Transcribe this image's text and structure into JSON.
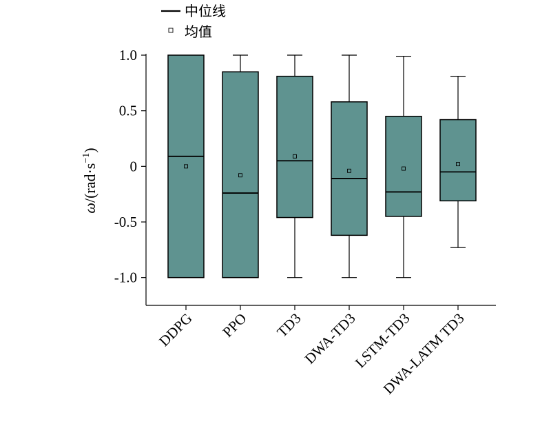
{
  "chart_data": {
    "type": "box",
    "ylabel_symbol": "ω",
    "ylabel_unit": "/(rad·s",
    "ylabel_exp": "−1",
    "ylabel_close": ")",
    "ylim": [
      -1.25,
      1.0
    ],
    "yticks": [
      1.0,
      0.5,
      0,
      -0.5,
      -1.0
    ],
    "ytick_labels": [
      "1.0",
      "0.5",
      "0",
      "-0.5",
      "-1.0"
    ],
    "categories": [
      "DDPG",
      "PPO",
      "TD3",
      "DWA-TD3",
      "LSTM-TD3",
      "DWA-LATM TD3"
    ],
    "boxes": [
      {
        "min": -1.0,
        "q1": -1.0,
        "median": 0.09,
        "q3": 1.0,
        "max": 1.0,
        "mean": 0.0
      },
      {
        "min": -1.0,
        "q1": -1.0,
        "median": -0.24,
        "q3": 0.85,
        "max": 1.0,
        "mean": -0.08
      },
      {
        "min": -1.0,
        "q1": -0.46,
        "median": 0.05,
        "q3": 0.81,
        "max": 1.0,
        "mean": 0.09
      },
      {
        "min": -1.0,
        "q1": -0.62,
        "median": -0.11,
        "q3": 0.58,
        "max": 1.0,
        "mean": -0.04
      },
      {
        "min": -1.0,
        "q1": -0.45,
        "median": -0.23,
        "q3": 0.45,
        "max": 0.99,
        "mean": -0.02
      },
      {
        "min": -0.73,
        "q1": -0.31,
        "median": -0.05,
        "q3": 0.42,
        "max": 0.81,
        "mean": 0.02
      }
    ],
    "box_color": "#5f9390",
    "legend": {
      "placement": "top-left",
      "median_label": "中位线",
      "mean_label": "均值"
    }
  }
}
